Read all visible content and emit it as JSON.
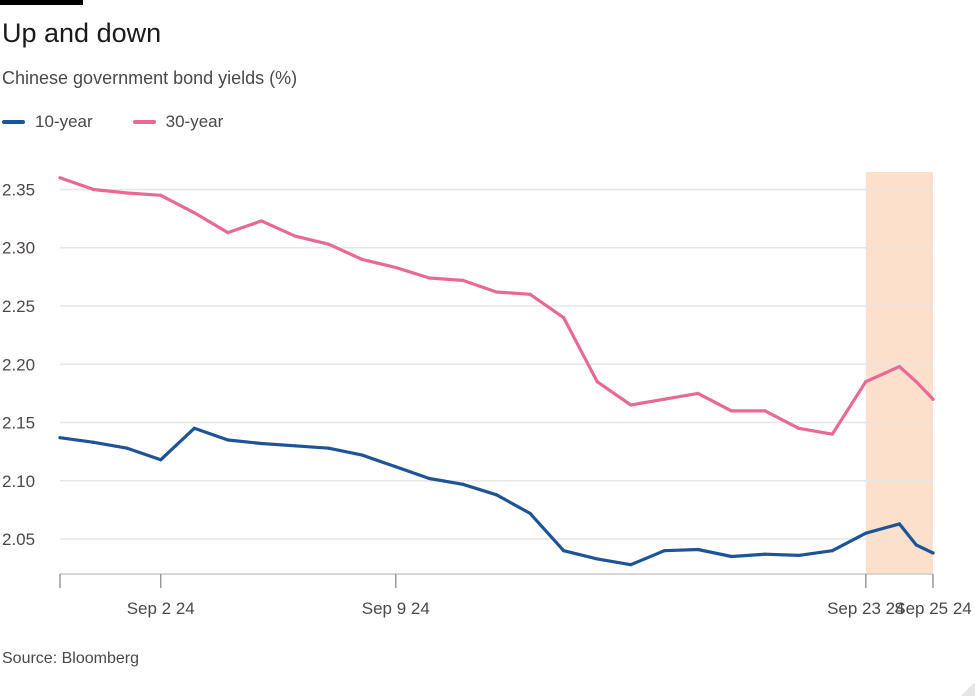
{
  "title": "Up and down",
  "subtitle": "Chinese government bond yields (%)",
  "source": "Source: Bloomberg",
  "colors": {
    "ten_year": "#1d5496",
    "thirty_year": "#e86995",
    "shade": "#fde0cc",
    "grid": "#e6e6e6"
  },
  "chart_data": {
    "type": "line",
    "title": "Up and down",
    "subtitle": "Chinese government bond yields (%)",
    "xlabel": "",
    "ylabel": "",
    "x_range": [
      "Aug 30 24",
      "Sep 25 24"
    ],
    "ylim": [
      2.02,
      2.365
    ],
    "y_ticks": [
      2.05,
      2.1,
      2.15,
      2.2,
      2.25,
      2.3,
      2.35
    ],
    "y_tick_labels": [
      "2.05",
      "2.10",
      "2.15",
      "2.20",
      "2.25",
      "2.30",
      "2.35"
    ],
    "x_tick_labels": [
      {
        "x": "Sep 2 24",
        "label": "Sep 2 24"
      },
      {
        "x": "Sep 9 24",
        "label": "Sep 9 24"
      },
      {
        "x": "Sep 23 24",
        "label": "Sep 23 24"
      },
      {
        "x": "Sep 25 24",
        "label": "Sep 25 24"
      }
    ],
    "highlight_range": [
      "Sep 23 24",
      "Sep 25 24"
    ],
    "grid": true,
    "legend_position": "top-left",
    "series": [
      {
        "name": "10-year",
        "color": "#1d5496",
        "points": [
          [
            "Aug 30 24",
            2.137
          ],
          [
            "Aug 31 24",
            2.133
          ],
          [
            "Sep 1 24",
            2.128
          ],
          [
            "Sep 2 24",
            2.118
          ],
          [
            "Sep 3 24",
            2.145
          ],
          [
            "Sep 4 24",
            2.135
          ],
          [
            "Sep 5 24",
            2.132
          ],
          [
            "Sep 6 24",
            2.13
          ],
          [
            "Sep 7 24",
            2.128
          ],
          [
            "Sep 8 24",
            2.122
          ],
          [
            "Sep 9 24",
            2.112
          ],
          [
            "Sep 10 24",
            2.102
          ],
          [
            "Sep 11 24",
            2.097
          ],
          [
            "Sep 12 24",
            2.088
          ],
          [
            "Sep 13 24",
            2.072
          ],
          [
            "Sep 14 24",
            2.04
          ],
          [
            "Sep 15 24",
            2.033
          ],
          [
            "Sep 16 24",
            2.028
          ],
          [
            "Sep 17 24",
            2.04
          ],
          [
            "Sep 18 24",
            2.041
          ],
          [
            "Sep 19 24",
            2.035
          ],
          [
            "Sep 20 24",
            2.037
          ],
          [
            "Sep 21 24",
            2.036
          ],
          [
            "Sep 22 24",
            2.04
          ],
          [
            "Sep 23 24",
            2.055
          ],
          [
            "Sep 24 24",
            2.063
          ],
          [
            "Sep 24 12h",
            2.045
          ],
          [
            "Sep 25 24",
            2.038
          ]
        ]
      },
      {
        "name": "30-year",
        "color": "#e86995",
        "points": [
          [
            "Aug 30 24",
            2.36
          ],
          [
            "Aug 31 24",
            2.35
          ],
          [
            "Sep 1 24",
            2.347
          ],
          [
            "Sep 2 24",
            2.345
          ],
          [
            "Sep 3 24",
            2.33
          ],
          [
            "Sep 4 24",
            2.313
          ],
          [
            "Sep 5 24",
            2.323
          ],
          [
            "Sep 6 24",
            2.31
          ],
          [
            "Sep 7 24",
            2.303
          ],
          [
            "Sep 8 24",
            2.29
          ],
          [
            "Sep 9 24",
            2.283
          ],
          [
            "Sep 10 24",
            2.274
          ],
          [
            "Sep 11 24",
            2.272
          ],
          [
            "Sep 12 24",
            2.262
          ],
          [
            "Sep 13 24",
            2.26
          ],
          [
            "Sep 14 24",
            2.24
          ],
          [
            "Sep 15 24",
            2.185
          ],
          [
            "Sep 16 24",
            2.165
          ],
          [
            "Sep 17 24",
            2.17
          ],
          [
            "Sep 18 24",
            2.175
          ],
          [
            "Sep 19 24",
            2.16
          ],
          [
            "Sep 20 24",
            2.16
          ],
          [
            "Sep 21 24",
            2.145
          ],
          [
            "Sep 22 24",
            2.14
          ],
          [
            "Sep 23 24",
            2.185
          ],
          [
            "Sep 24 24",
            2.198
          ],
          [
            "Sep 24 12h",
            2.185
          ],
          [
            "Sep 25 24",
            2.17
          ]
        ]
      }
    ]
  }
}
